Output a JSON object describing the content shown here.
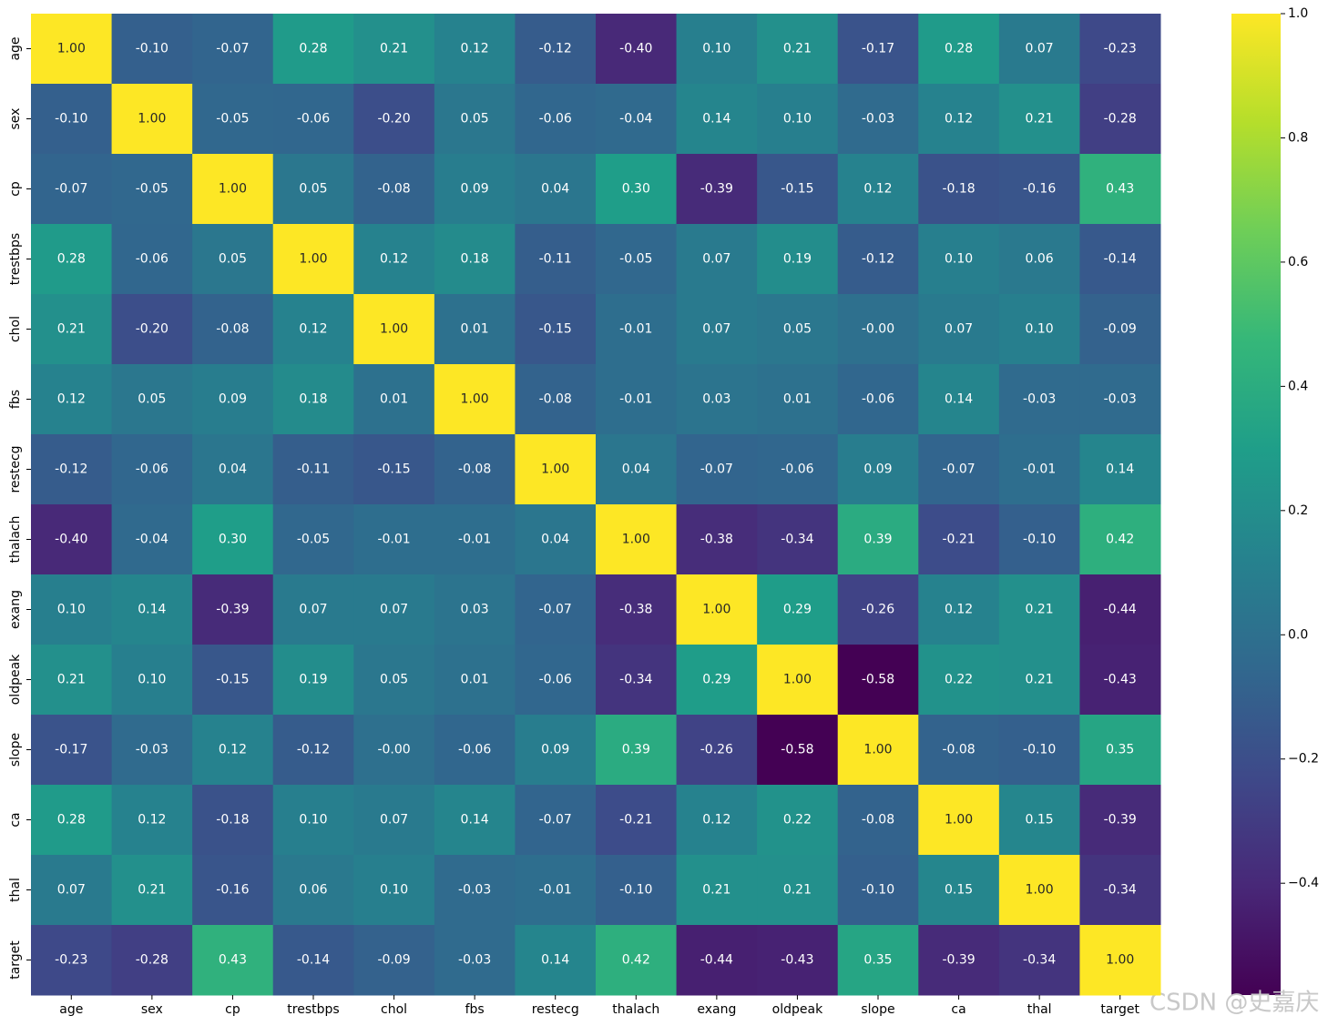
{
  "chart_data": {
    "type": "heatmap",
    "categories": [
      "age",
      "sex",
      "cp",
      "trestbps",
      "chol",
      "fbs",
      "restecg",
      "thalach",
      "exang",
      "oldpeak",
      "slope",
      "ca",
      "thal",
      "target"
    ],
    "values": [
      [
        1,
        -0.1,
        -0.07,
        0.28,
        0.21,
        0.12,
        -0.12,
        -0.4,
        0.1,
        0.21,
        -0.17,
        0.28,
        0.07,
        -0.23
      ],
      [
        -0.1,
        1,
        -0.05,
        -0.06,
        -0.2,
        0.05,
        -0.06,
        -0.04,
        0.14,
        0.1,
        -0.03,
        0.12,
        0.21,
        -0.28
      ],
      [
        -0.07,
        -0.05,
        1,
        0.05,
        -0.08,
        0.09,
        0.04,
        0.3,
        -0.39,
        -0.15,
        0.12,
        -0.18,
        -0.16,
        0.43
      ],
      [
        0.28,
        -0.06,
        0.05,
        1,
        0.12,
        0.18,
        -0.11,
        -0.05,
        0.07,
        0.19,
        -0.12,
        0.1,
        0.06,
        -0.14
      ],
      [
        0.21,
        -0.2,
        -0.08,
        0.12,
        1,
        0.01,
        -0.15,
        -0.01,
        0.07,
        0.05,
        0,
        0.07,
        0.1,
        -0.09
      ],
      [
        0.12,
        0.05,
        0.09,
        0.18,
        0.01,
        1,
        -0.08,
        -0.01,
        0.03,
        0.01,
        -0.06,
        0.14,
        -0.03,
        -0.03
      ],
      [
        -0.12,
        -0.06,
        0.04,
        -0.11,
        -0.15,
        -0.08,
        1,
        0.04,
        -0.07,
        -0.06,
        0.09,
        -0.07,
        -0.01,
        0.14
      ],
      [
        -0.4,
        -0.04,
        0.3,
        -0.05,
        -0.01,
        -0.01,
        0.04,
        1,
        -0.38,
        -0.34,
        0.39,
        -0.21,
        -0.1,
        0.42
      ],
      [
        0.1,
        0.14,
        -0.39,
        0.07,
        0.07,
        0.03,
        -0.07,
        -0.38,
        1,
        0.29,
        -0.26,
        0.12,
        0.21,
        -0.44
      ],
      [
        0.21,
        0.1,
        -0.15,
        0.19,
        0.05,
        0.01,
        -0.06,
        -0.34,
        0.29,
        1,
        -0.58,
        0.22,
        0.21,
        -0.43
      ],
      [
        -0.17,
        -0.03,
        0.12,
        -0.12,
        0,
        -0.06,
        0.09,
        0.39,
        -0.26,
        -0.58,
        1,
        -0.08,
        -0.1,
        0.35
      ],
      [
        0.28,
        0.12,
        -0.18,
        0.1,
        0.07,
        0.14,
        -0.07,
        -0.21,
        0.12,
        0.22,
        -0.08,
        1,
        0.15,
        -0.39
      ],
      [
        0.07,
        0.21,
        -0.16,
        0.06,
        0.1,
        -0.03,
        -0.01,
        -0.1,
        0.21,
        0.21,
        -0.1,
        0.15,
        1,
        -0.34
      ],
      [
        -0.23,
        -0.28,
        0.43,
        -0.14,
        -0.09,
        -0.03,
        0.14,
        0.42,
        -0.44,
        -0.43,
        0.35,
        -0.39,
        -0.34,
        1
      ]
    ],
    "value_labels": [
      [
        "1.00",
        "-0.10",
        "-0.07",
        "0.28",
        "0.21",
        "0.12",
        "-0.12",
        "-0.40",
        "0.10",
        "0.21",
        "-0.17",
        "0.28",
        "0.07",
        "-0.23"
      ],
      [
        "-0.10",
        "1.00",
        "-0.05",
        "-0.06",
        "-0.20",
        "0.05",
        "-0.06",
        "-0.04",
        "0.14",
        "0.10",
        "-0.03",
        "0.12",
        "0.21",
        "-0.28"
      ],
      [
        "-0.07",
        "-0.05",
        "1.00",
        "0.05",
        "-0.08",
        "0.09",
        "0.04",
        "0.30",
        "-0.39",
        "-0.15",
        "0.12",
        "-0.18",
        "-0.16",
        "0.43"
      ],
      [
        "0.28",
        "-0.06",
        "0.05",
        "1.00",
        "0.12",
        "0.18",
        "-0.11",
        "-0.05",
        "0.07",
        "0.19",
        "-0.12",
        "0.10",
        "0.06",
        "-0.14"
      ],
      [
        "0.21",
        "-0.20",
        "-0.08",
        "0.12",
        "1.00",
        "0.01",
        "-0.15",
        "-0.01",
        "0.07",
        "0.05",
        "-0.00",
        "0.07",
        "0.10",
        "-0.09"
      ],
      [
        "0.12",
        "0.05",
        "0.09",
        "0.18",
        "0.01",
        "1.00",
        "-0.08",
        "-0.01",
        "0.03",
        "0.01",
        "-0.06",
        "0.14",
        "-0.03",
        "-0.03"
      ],
      [
        "-0.12",
        "-0.06",
        "0.04",
        "-0.11",
        "-0.15",
        "-0.08",
        "1.00",
        "0.04",
        "-0.07",
        "-0.06",
        "0.09",
        "-0.07",
        "-0.01",
        "0.14"
      ],
      [
        "-0.40",
        "-0.04",
        "0.30",
        "-0.05",
        "-0.01",
        "-0.01",
        "0.04",
        "1.00",
        "-0.38",
        "-0.34",
        "0.39",
        "-0.21",
        "-0.10",
        "0.42"
      ],
      [
        "0.10",
        "0.14",
        "-0.39",
        "0.07",
        "0.07",
        "0.03",
        "-0.07",
        "-0.38",
        "1.00",
        "0.29",
        "-0.26",
        "0.12",
        "0.21",
        "-0.44"
      ],
      [
        "0.21",
        "0.10",
        "-0.15",
        "0.19",
        "0.05",
        "0.01",
        "-0.06",
        "-0.34",
        "0.29",
        "1.00",
        "-0.58",
        "0.22",
        "0.21",
        "-0.43"
      ],
      [
        "-0.17",
        "-0.03",
        "0.12",
        "-0.12",
        "-0.00",
        "-0.06",
        "0.09",
        "0.39",
        "-0.26",
        "-0.58",
        "1.00",
        "-0.08",
        "-0.10",
        "0.35"
      ],
      [
        "0.28",
        "0.12",
        "-0.18",
        "0.10",
        "0.07",
        "0.14",
        "-0.07",
        "-0.21",
        "0.12",
        "0.22",
        "-0.08",
        "1.00",
        "0.15",
        "-0.39"
      ],
      [
        "0.07",
        "0.21",
        "-0.16",
        "0.06",
        "0.10",
        "-0.03",
        "-0.01",
        "-0.10",
        "0.21",
        "0.21",
        "-0.10",
        "0.15",
        "1.00",
        "-0.34"
      ],
      [
        "-0.23",
        "-0.28",
        "0.43",
        "-0.14",
        "-0.09",
        "-0.03",
        "0.14",
        "0.42",
        "-0.44",
        "-0.43",
        "0.35",
        "-0.39",
        "-0.34",
        "1.00"
      ]
    ],
    "colormap": "viridis",
    "clim": [
      -0.58,
      1.0
    ],
    "cticks": [
      {
        "value": -0.4,
        "label": "−0.4"
      },
      {
        "value": -0.2,
        "label": "−0.2"
      },
      {
        "value": 0,
        "label": "0.0"
      },
      {
        "value": 0.2,
        "label": "0.2"
      },
      {
        "value": 0.4,
        "label": "0.4"
      },
      {
        "value": 0.6,
        "label": "0.6"
      },
      {
        "value": 0.8,
        "label": "0.8"
      },
      {
        "value": 1,
        "label": "1.0"
      }
    ],
    "watermark": "CSDN @史嘉庆"
  }
}
